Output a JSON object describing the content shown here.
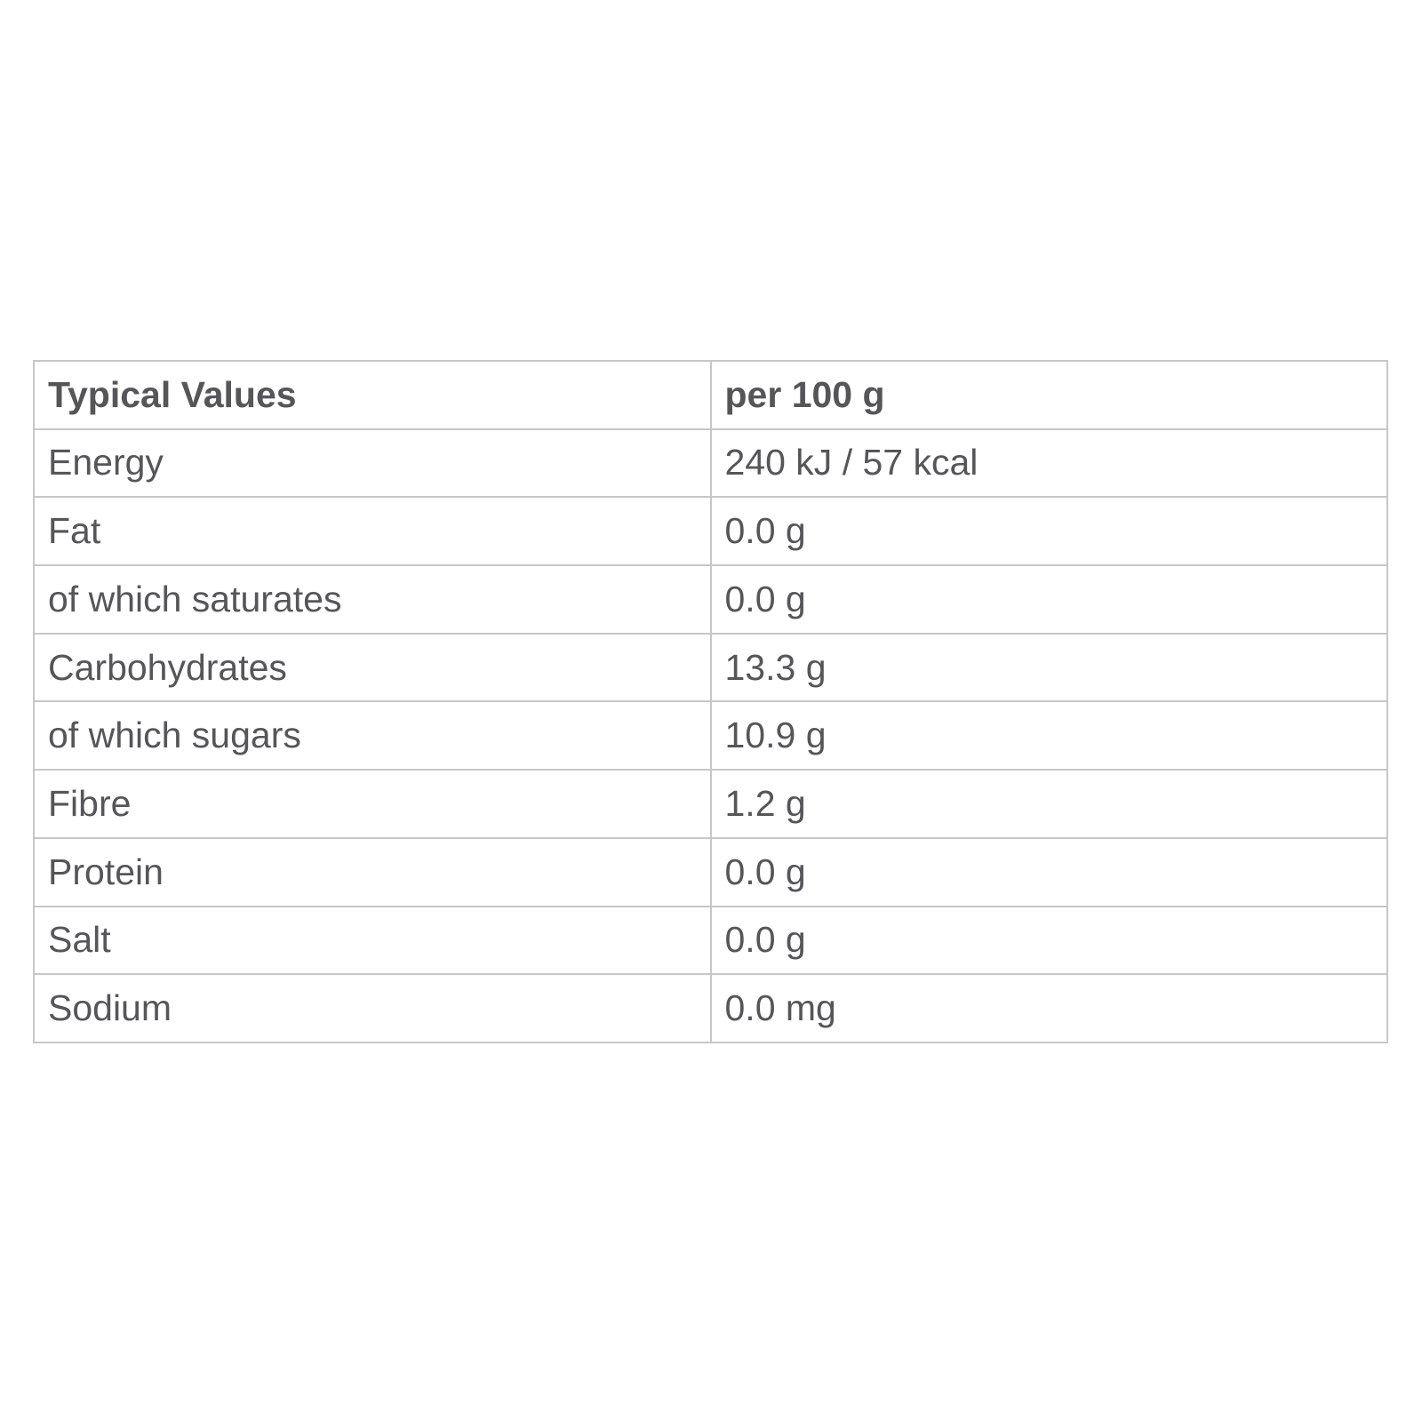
{
  "table": {
    "headers": {
      "col1": "Typical Values",
      "col2": "per 100 g"
    },
    "rows": [
      {
        "label": "Energy",
        "value": "240 kJ / 57 kcal"
      },
      {
        "label": "Fat",
        "value": "0.0 g"
      },
      {
        "label": "of which saturates",
        "value": "0.0 g"
      },
      {
        "label": "Carbohydrates",
        "value": "13.3 g"
      },
      {
        "label": "of which sugars",
        "value": "10.9 g"
      },
      {
        "label": "Fibre",
        "value": "1.2 g"
      },
      {
        "label": "Protein",
        "value": "0.0 g"
      },
      {
        "label": "Salt",
        "value": "0.0 g"
      },
      {
        "label": "Sodium",
        "value": "0.0 mg"
      }
    ],
    "colors": {
      "text": "#56565a",
      "border": "#c7c7c7",
      "background": "#ffffff"
    }
  }
}
